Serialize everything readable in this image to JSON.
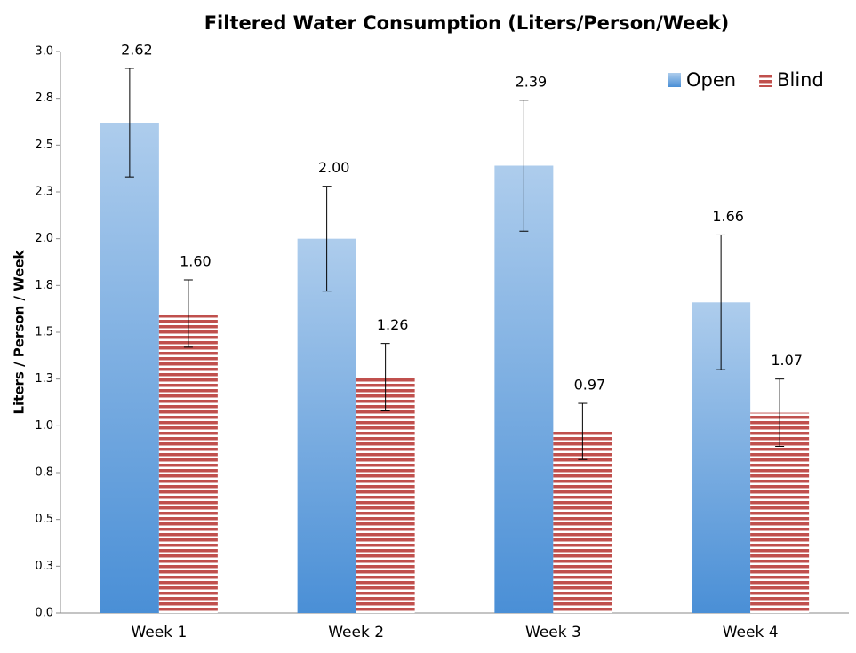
{
  "chart_data": {
    "type": "bar",
    "title": "Filtered Water Consumption (Liters/Person/Week)",
    "ylabel": "Liters / Person / Week",
    "categories": [
      "Week 1",
      "Week 2",
      "Week 3",
      "Week 4"
    ],
    "series": [
      {
        "name": "Open",
        "color": "#4a8fd6",
        "values": [
          2.62,
          2.0,
          2.39,
          1.66
        ],
        "value_labels": [
          "2.62",
          "2.00",
          "2.39",
          "1.66"
        ],
        "errors": [
          0.29,
          0.28,
          0.35,
          0.36
        ]
      },
      {
        "name": "Blind",
        "color": "#c0504d",
        "values": [
          1.6,
          1.26,
          0.97,
          1.07
        ],
        "value_labels": [
          "1.60",
          "1.26",
          "0.97",
          "1.07"
        ],
        "errors": [
          0.18,
          0.18,
          0.15,
          0.18
        ]
      }
    ],
    "ylim": [
      0,
      3
    ],
    "yticks": [
      {
        "value": 0,
        "label": "0.0"
      },
      {
        "value": 0.25,
        "label": "0.3"
      },
      0.5,
      {
        "value": 0.75,
        "label": "0.8"
      },
      {
        "value": 1,
        "label": "1.0"
      },
      {
        "value": 1.25,
        "label": "1.3"
      },
      1.5,
      {
        "value": 1.75,
        "label": "1.8"
      },
      {
        "value": 2,
        "label": "2.0"
      },
      {
        "value": 2.25,
        "label": "2.3"
      },
      2.5,
      {
        "value": 2.75,
        "label": "2.8"
      },
      {
        "value": 3,
        "label": "3.0"
      }
    ],
    "legend": "upper right",
    "grid": false
  }
}
